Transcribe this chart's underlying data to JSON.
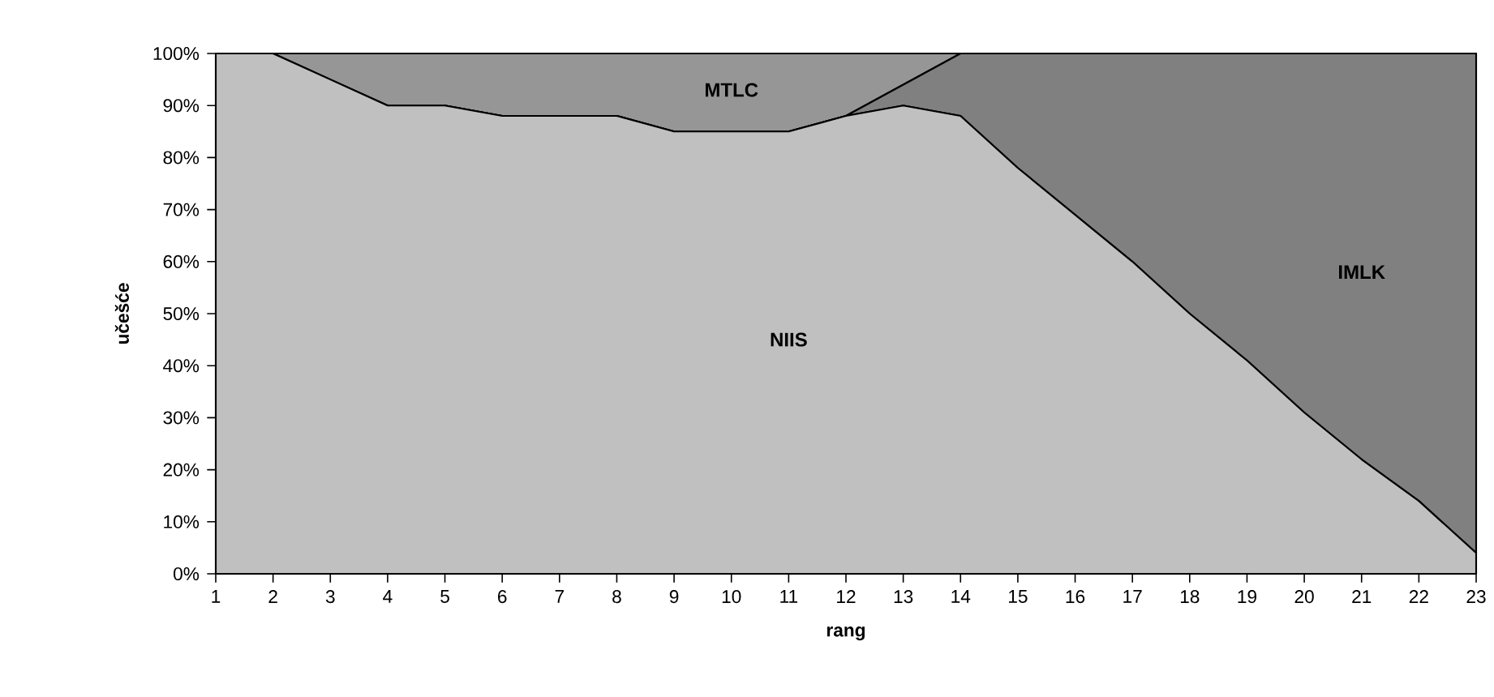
{
  "chart_data": {
    "type": "area",
    "stacked": true,
    "xlabel": "rang",
    "ylabel": "učešće",
    "x": [
      1,
      2,
      3,
      4,
      5,
      6,
      7,
      8,
      9,
      10,
      11,
      12,
      13,
      14,
      15,
      16,
      17,
      18,
      19,
      20,
      21,
      22,
      23
    ],
    "xlim": [
      1,
      23
    ],
    "xticks": [
      1,
      2,
      3,
      4,
      5,
      6,
      7,
      8,
      9,
      10,
      11,
      12,
      13,
      14,
      15,
      16,
      17,
      18,
      19,
      20,
      21,
      22,
      23
    ],
    "ylim": [
      0,
      100
    ],
    "yticks": [
      {
        "value": 0,
        "label": "0%"
      },
      {
        "value": 10,
        "label": "10%"
      },
      {
        "value": 20,
        "label": "20%"
      },
      {
        "value": 30,
        "label": "30%"
      },
      {
        "value": 40,
        "label": "40%"
      },
      {
        "value": 50,
        "label": "50%"
      },
      {
        "value": 60,
        "label": "60%"
      },
      {
        "value": 70,
        "label": "70%"
      },
      {
        "value": 80,
        "label": "80%"
      },
      {
        "value": 90,
        "label": "90%"
      },
      {
        "value": 100,
        "label": "100%"
      }
    ],
    "legend": false,
    "series": [
      {
        "name": "NIIS",
        "color": "#c0c0c0",
        "values": [
          100,
          100,
          95,
          90,
          90,
          88,
          88,
          88,
          85,
          85,
          85,
          88,
          90,
          88,
          78,
          69,
          60,
          50,
          41,
          31,
          22,
          14,
          4
        ]
      },
      {
        "name": "IMLK",
        "color": "#808080",
        "values": [
          0,
          0,
          0,
          0,
          0,
          0,
          0,
          0,
          0,
          0,
          0,
          0,
          4,
          12,
          22,
          31,
          40,
          50,
          59,
          69,
          78,
          86,
          96
        ]
      },
      {
        "name": "MTLC",
        "color": "#969696",
        "values": [
          0,
          0,
          5,
          10,
          10,
          12,
          12,
          12,
          15,
          15,
          15,
          12,
          6,
          0,
          0,
          0,
          0,
          0,
          0,
          0,
          0,
          0,
          0
        ]
      }
    ]
  }
}
